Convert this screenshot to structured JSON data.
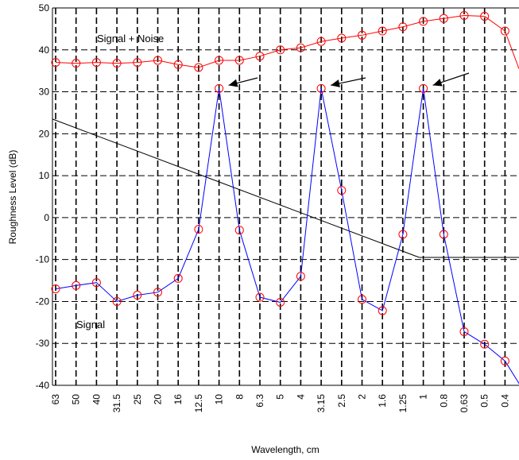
{
  "chart_data": {
    "type": "line",
    "xlabel": "Wavelength, cm",
    "ylabel": "Roughness Level (dB)",
    "ylim": [
      -40,
      50
    ],
    "yticks": [
      -40,
      -30,
      -20,
      -10,
      0,
      10,
      20,
      30,
      40,
      50
    ],
    "categories": [
      "63",
      "50",
      "40",
      "31.5",
      "25",
      "20",
      "16",
      "12.5",
      "10",
      "8",
      "6.3",
      "5",
      "4",
      "3.15",
      "2.5",
      "2",
      "1.6",
      "1.25",
      "1",
      "0.8",
      "0.63",
      "0.5",
      "0.4"
    ],
    "grid": true,
    "series": [
      {
        "name": "Signal + Noise",
        "color": "#ff0000",
        "marker": "circle",
        "values": [
          37,
          36.8,
          37,
          36.8,
          37,
          37.5,
          36.5,
          35.8,
          37.5,
          37.5,
          38.5,
          40,
          40.5,
          42,
          42.8,
          43.5,
          44.5,
          45.5,
          46.8,
          47.5,
          48.2,
          48,
          44.5
        ]
      },
      {
        "name": "Signal",
        "color": "#0000ff",
        "marker": "circle",
        "values": [
          -17,
          -16.2,
          -15.5,
          -20,
          -18.5,
          -17.8,
          -14.5,
          -2.8,
          30.8,
          -3,
          -19,
          -20.2,
          -14,
          30.8,
          6.5,
          -19.5,
          -22.2,
          -4,
          30.8,
          -4,
          -27.2,
          -30.2,
          -34.2
        ]
      }
    ],
    "annotations": [
      "Signal + Noise",
      "Signal"
    ]
  }
}
